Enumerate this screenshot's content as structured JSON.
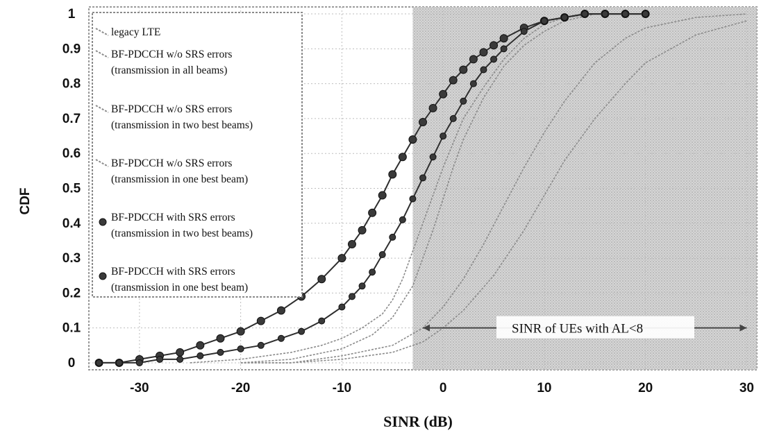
{
  "chart_data": {
    "type": "line",
    "title": "",
    "xlabel": "SINR (dB)",
    "ylabel": "CDF",
    "xlim": [
      -35,
      31
    ],
    "ylim": [
      -0.02,
      1.02
    ],
    "x_ticks": [
      -30,
      -20,
      -10,
      0,
      10,
      20,
      30
    ],
    "y_ticks": [
      0,
      0.1,
      0.2,
      0.3,
      0.4,
      0.5,
      0.6,
      0.7,
      0.8,
      0.9,
      1
    ],
    "grid": true,
    "legend_position": "top-left",
    "series": [
      {
        "name": "legacy LTE",
        "marker": "none",
        "color": "#8a8a8a",
        "x": [
          -20,
          -15,
          -10,
          -5,
          -2,
          0,
          2,
          5,
          8,
          10,
          12,
          15,
          18,
          20,
          25,
          30
        ],
        "y": [
          0.0,
          0.0,
          0.01,
          0.03,
          0.06,
          0.1,
          0.15,
          0.25,
          0.38,
          0.48,
          0.58,
          0.7,
          0.8,
          0.86,
          0.94,
          0.98
        ]
      },
      {
        "name": "BF-PDCCH w/o SRS errors (transmission in all beams)",
        "marker": "none",
        "color": "#8a8a8a",
        "x": [
          -20,
          -15,
          -10,
          -5,
          -2,
          0,
          2,
          4,
          6,
          8,
          10,
          12,
          15,
          18,
          20,
          25,
          30
        ],
        "y": [
          0.0,
          0.0,
          0.02,
          0.05,
          0.1,
          0.16,
          0.24,
          0.34,
          0.45,
          0.56,
          0.66,
          0.75,
          0.86,
          0.93,
          0.96,
          0.99,
          1.0
        ]
      },
      {
        "name": "BF-PDCCH w/o SRS errors (transmission in two best beams)",
        "marker": "none",
        "color": "#8a8a8a",
        "x": [
          -20,
          -15,
          -10,
          -7,
          -5,
          -3,
          -2,
          -1,
          0,
          1,
          2,
          4,
          6,
          8,
          10,
          12,
          15
        ],
        "y": [
          0.0,
          0.01,
          0.04,
          0.08,
          0.13,
          0.22,
          0.3,
          0.38,
          0.47,
          0.56,
          0.64,
          0.76,
          0.85,
          0.91,
          0.95,
          0.98,
          1.0
        ]
      },
      {
        "name": "BF-PDCCH w/o SRS errors (transmission in one best beam)",
        "marker": "none",
        "color": "#8a8a8a",
        "x": [
          -25,
          -20,
          -15,
          -12,
          -10,
          -8,
          -6,
          -5,
          -4,
          -3,
          -2,
          -1,
          0,
          1,
          2,
          4,
          6,
          8,
          10,
          12,
          15
        ],
        "y": [
          0.0,
          0.01,
          0.03,
          0.05,
          0.07,
          0.1,
          0.14,
          0.18,
          0.24,
          0.32,
          0.4,
          0.48,
          0.56,
          0.63,
          0.7,
          0.79,
          0.87,
          0.93,
          0.97,
          0.99,
          1.0
        ]
      },
      {
        "name": "BF-PDCCH with SRS errors (transmission in two best beams)",
        "marker": "circle",
        "color": "#2e2e2e",
        "x": [
          -34,
          -32,
          -30,
          -28,
          -26,
          -24,
          -22,
          -20,
          -18,
          -16,
          -14,
          -12,
          -10,
          -9,
          -8,
          -7,
          -6,
          -5,
          -4,
          -3,
          -2,
          -1,
          0,
          1,
          2,
          3,
          4,
          5,
          6,
          8,
          10,
          12,
          14,
          16,
          18,
          20
        ],
        "y": [
          0.0,
          0.0,
          0.01,
          0.02,
          0.03,
          0.05,
          0.07,
          0.09,
          0.12,
          0.15,
          0.19,
          0.24,
          0.3,
          0.34,
          0.38,
          0.43,
          0.48,
          0.54,
          0.59,
          0.64,
          0.69,
          0.73,
          0.77,
          0.81,
          0.84,
          0.87,
          0.89,
          0.91,
          0.93,
          0.96,
          0.98,
          0.99,
          1.0,
          1.0,
          1.0,
          1.0
        ]
      },
      {
        "name": "BF-PDCCH with SRS errors (transmission in one best beam)",
        "marker": "circle",
        "color": "#2e2e2e",
        "x": [
          -34,
          -32,
          -30,
          -28,
          -26,
          -24,
          -22,
          -20,
          -18,
          -16,
          -14,
          -12,
          -10,
          -9,
          -8,
          -7,
          -6,
          -5,
          -4,
          -3,
          -2,
          -1,
          0,
          1,
          2,
          3,
          4,
          5,
          6,
          8,
          10,
          12,
          14,
          16,
          18,
          20
        ],
        "y": [
          0.0,
          0.0,
          0.0,
          0.01,
          0.01,
          0.02,
          0.03,
          0.04,
          0.05,
          0.07,
          0.09,
          0.12,
          0.16,
          0.19,
          0.22,
          0.26,
          0.31,
          0.36,
          0.41,
          0.47,
          0.53,
          0.59,
          0.65,
          0.7,
          0.75,
          0.8,
          0.84,
          0.87,
          0.9,
          0.95,
          0.98,
          0.99,
          1.0,
          1.0,
          1.0,
          1.0
        ]
      }
    ],
    "annotation": {
      "text": "SINR of UEs with AL<8",
      "arrow_from_x": -2,
      "arrow_to_x": 30,
      "y": 0.1
    },
    "shaded_region_x": [
      -3,
      31
    ]
  },
  "legend": {
    "items": [
      {
        "line1": "legacy LTE",
        "line2": ""
      },
      {
        "line1": "BF-PDCCH w/o SRS errors",
        "line2": "(transmission in all beams)"
      },
      {
        "line1": "BF-PDCCH w/o SRS errors",
        "line2": "(transmission in two best beams)"
      },
      {
        "line1": "BF-PDCCH w/o SRS errors",
        "line2": "(transmission in one best beam)"
      },
      {
        "line1": "BF-PDCCH with SRS errors",
        "line2": "(transmission in two best beams)"
      },
      {
        "line1": "BF-PDCCH with SRS errors",
        "line2": "(transmission in one best beam)"
      }
    ]
  }
}
